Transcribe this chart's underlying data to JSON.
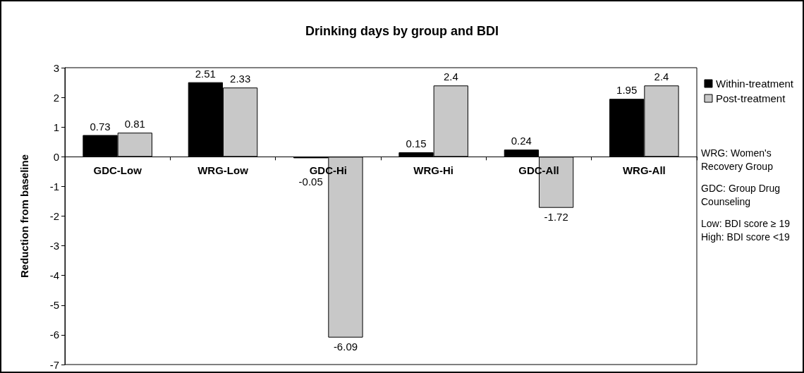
{
  "chart_data": {
    "type": "bar",
    "title": "Drinking days by group and BDI",
    "ylabel": "Reduction from baseline",
    "categories": [
      "GDC-Low",
      "WRG-Low",
      "GDC-Hi",
      "WRG-Hi",
      "GDC-All",
      "WRG-All"
    ],
    "series": [
      {
        "name": "Within-treatment",
        "color": "#000000",
        "values": [
          0.73,
          2.51,
          -0.05,
          0.15,
          0.24,
          1.95
        ]
      },
      {
        "name": "Post-treatment",
        "color": "#c8c8c8",
        "values": [
          0.81,
          2.33,
          -6.09,
          2.4,
          -1.72,
          2.4
        ]
      }
    ],
    "ylim": [
      -7,
      3
    ],
    "yticks": [
      -7,
      -6,
      -5,
      -4,
      -3,
      -2,
      -1,
      0,
      1,
      2,
      3
    ],
    "grid": false,
    "legend": "top right",
    "data_labels": true,
    "annotations": [
      "WRG: Women's Recovery Group",
      "GDC: Group Drug Counseling",
      "Low: BDI score ≥ 19\nHigh: BDI score <19"
    ]
  }
}
